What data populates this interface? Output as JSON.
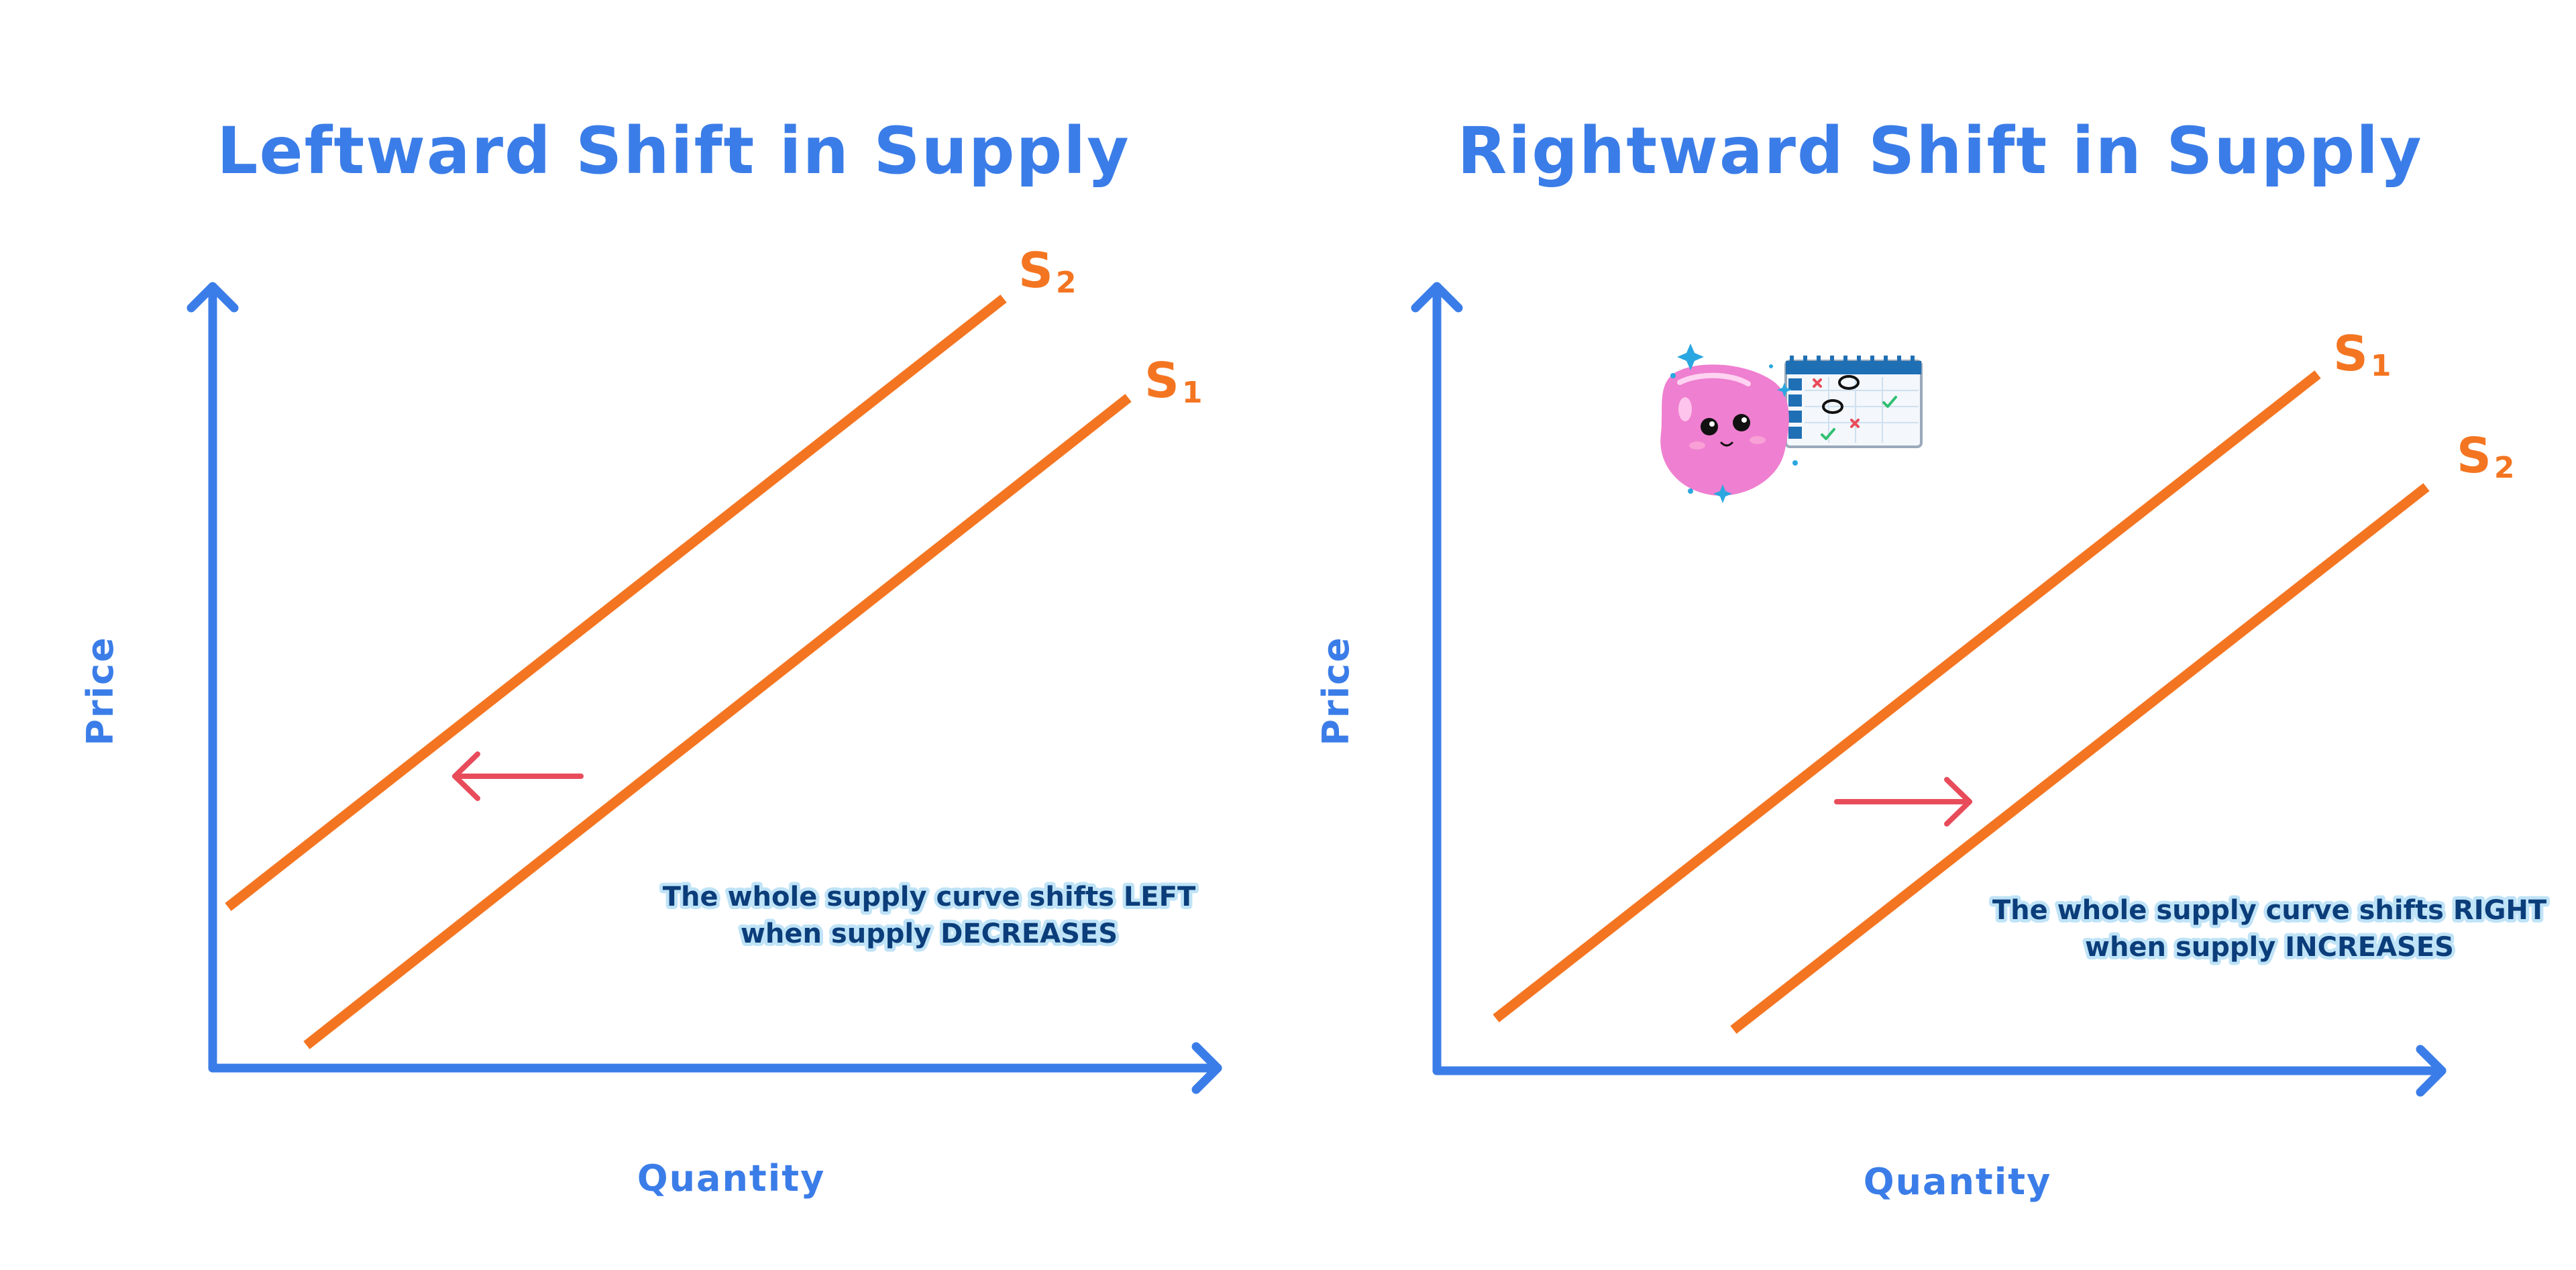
{
  "colors": {
    "axis": "#3b7de8",
    "curve": "#f47521",
    "arrow": "#e84c5a",
    "note_text": "#0b3d7a",
    "note_glow": "#bfe3f7",
    "mascot": "#ef7fd0"
  },
  "panels": [
    {
      "title": "Leftward Shift in Supply",
      "ylabel": "Price",
      "xlabel": "Quantity",
      "curves": [
        {
          "label_main": "S",
          "label_sub": "2"
        },
        {
          "label_main": "S",
          "label_sub": "1"
        }
      ],
      "shift_direction": "left",
      "note": {
        "line1_prefix": "The whole supply curve shifts ",
        "line1_emph": "LEFT",
        "line2_prefix": "when supply ",
        "line2_emph": "DECREASES"
      }
    },
    {
      "title": "Rightward Shift in Supply",
      "ylabel": "Price",
      "xlabel": "Quantity",
      "curves": [
        {
          "label_main": "S",
          "label_sub": "1"
        },
        {
          "label_main": "S",
          "label_sub": "2"
        }
      ],
      "shift_direction": "right",
      "note": {
        "line1_prefix": "The whole supply curve shifts ",
        "line1_emph": "RIGHT",
        "line2_prefix": "when supply ",
        "line2_emph": "INCREASES"
      }
    }
  ],
  "mascot": {
    "icon": "pink-blob-mascot-icon",
    "calendar_icon": "calendar-checklist-icon"
  }
}
